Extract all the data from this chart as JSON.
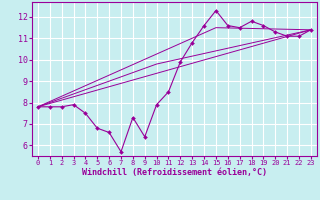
{
  "background_color": "#c8eef0",
  "grid_color": "#ffffff",
  "line_color": "#990099",
  "xlabel": "Windchill (Refroidissement éolien,°C)",
  "xlabel_color": "#990099",
  "tick_color": "#990099",
  "xlim": [
    -0.5,
    23.5
  ],
  "ylim": [
    5.5,
    12.7
  ],
  "yticks": [
    6,
    7,
    8,
    9,
    10,
    11,
    12
  ],
  "xticks": [
    0,
    1,
    2,
    3,
    4,
    5,
    6,
    7,
    8,
    9,
    10,
    11,
    12,
    13,
    14,
    15,
    16,
    17,
    18,
    19,
    20,
    21,
    22,
    23
  ],
  "line1_x": [
    0,
    1,
    2,
    3,
    4,
    5,
    6,
    7,
    8,
    9,
    10,
    11,
    12,
    13,
    14,
    15,
    16,
    17,
    18,
    19,
    20,
    21,
    22,
    23
  ],
  "line1_y": [
    7.8,
    7.8,
    7.8,
    7.9,
    7.5,
    6.8,
    6.6,
    5.7,
    7.3,
    6.4,
    7.9,
    8.5,
    9.9,
    10.8,
    11.6,
    12.3,
    11.6,
    11.5,
    11.8,
    11.6,
    11.3,
    11.1,
    11.1,
    11.4
  ],
  "line2_x": [
    0,
    23
  ],
  "line2_y": [
    7.8,
    11.4
  ],
  "line3_x": [
    0,
    10,
    23
  ],
  "line3_y": [
    7.8,
    9.8,
    11.4
  ],
  "line4_x": [
    0,
    15,
    23
  ],
  "line4_y": [
    7.8,
    11.5,
    11.4
  ]
}
